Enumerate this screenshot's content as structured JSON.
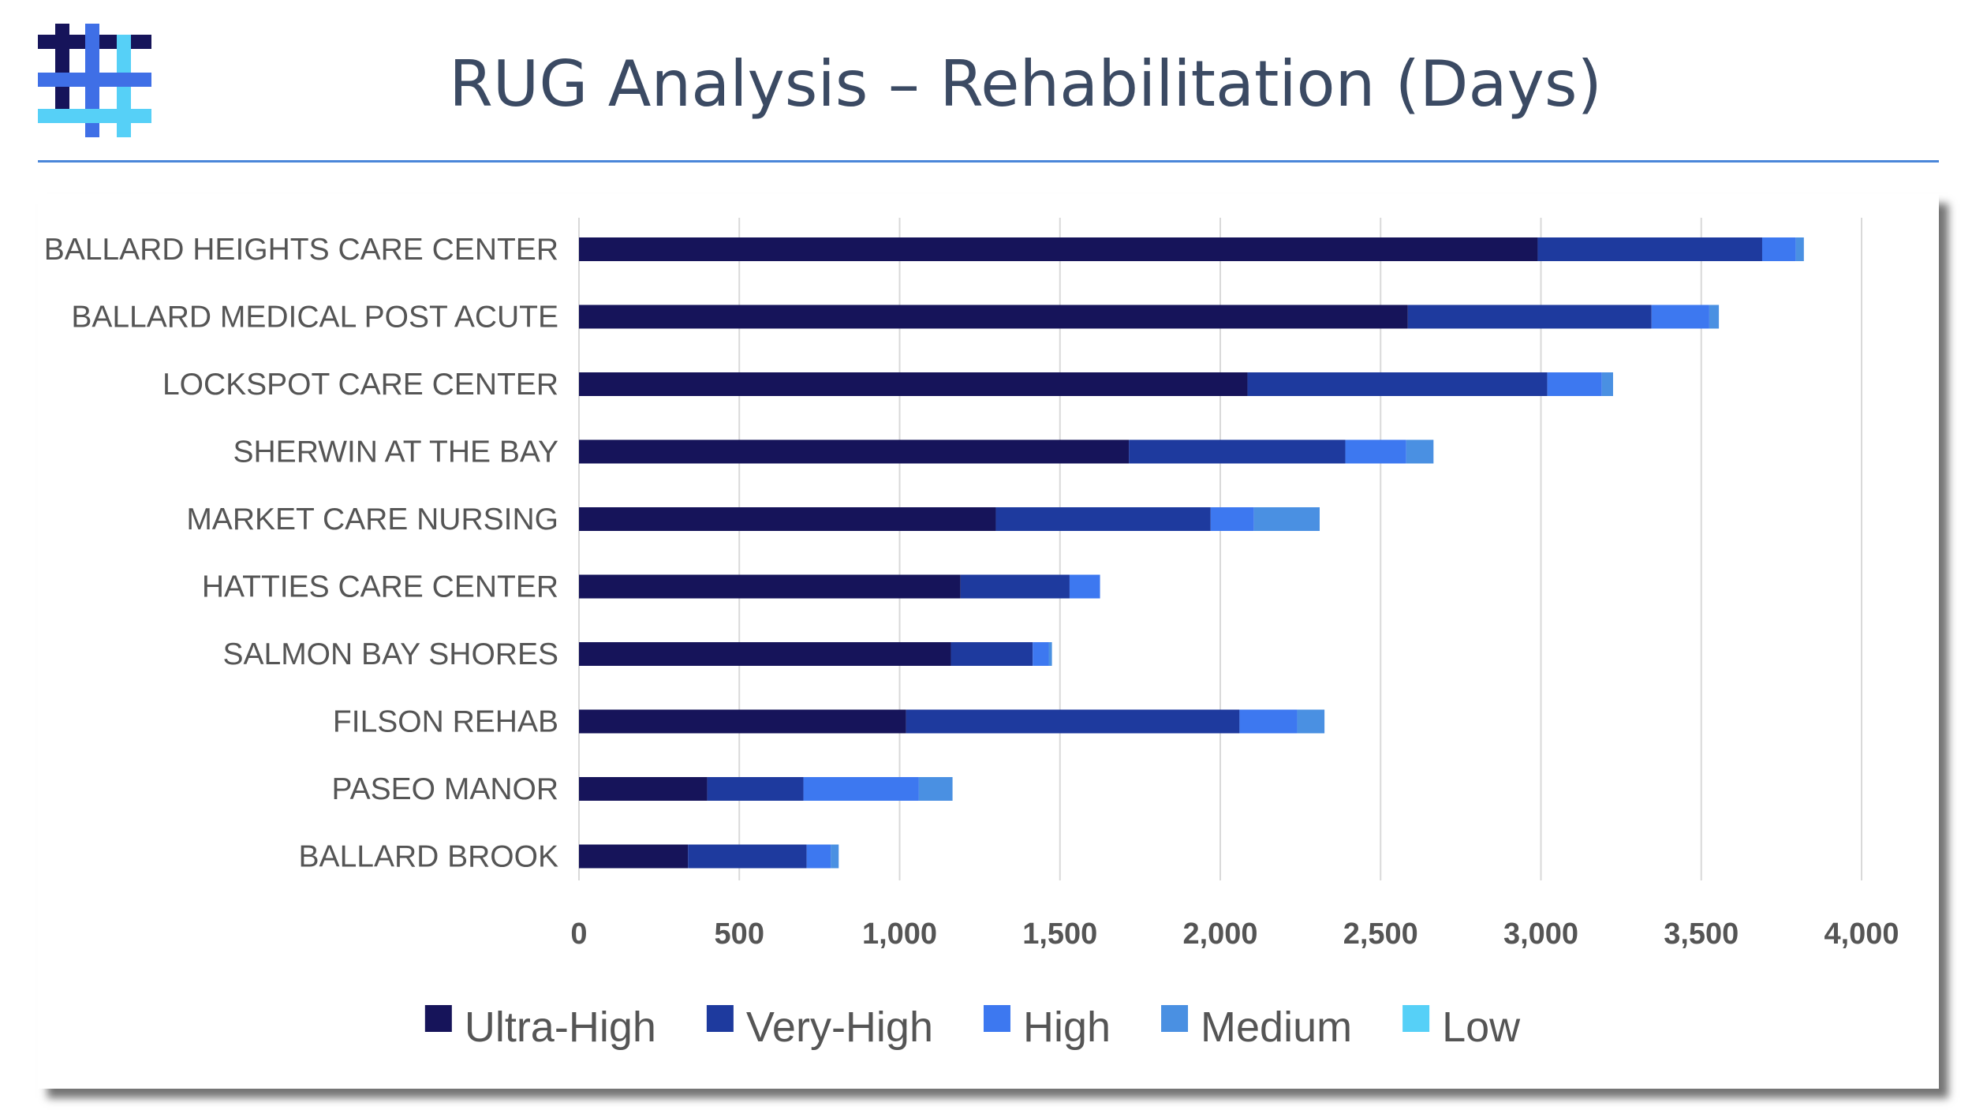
{
  "slide": {
    "title": "RUG Analysis – Rehabilitation (Days)"
  },
  "colors": {
    "title_rule": "#4a86d9",
    "logo_dark": "#16145a",
    "logo_mid": "#3f6fe6",
    "logo_light": "#56d0f7",
    "gridline": "#d9d9d9",
    "axis_text": "#555555"
  },
  "chart_data": {
    "type": "bar",
    "orientation": "horizontal",
    "stacked": true,
    "categories": [
      "BALLARD HEIGHTS CARE CENTER",
      "BALLARD MEDICAL POST ACUTE",
      "LOCKSPOT CARE CENTER",
      "SHERWIN AT THE BAY",
      "MARKET CARE NURSING",
      "HATTIES CARE CENTER",
      "SALMON BAY SHORES",
      "FILSON REHAB",
      "PASEO MANOR",
      "BALLARD BROOK"
    ],
    "series": [
      {
        "name": "Ultra-High",
        "color": "#16145a",
        "values": [
          2990,
          2585,
          2085,
          1715,
          1300,
          1190,
          1160,
          1020,
          400,
          340
        ]
      },
      {
        "name": "Very-High",
        "color": "#1e3a9e",
        "values": [
          700,
          760,
          935,
          675,
          670,
          340,
          255,
          1040,
          300,
          370
        ]
      },
      {
        "name": "High",
        "color": "#3d78f0",
        "values": [
          105,
          180,
          170,
          190,
          135,
          95,
          50,
          180,
          360,
          75
        ]
      },
      {
        "name": "Medium",
        "color": "#4a90e2",
        "values": [
          25,
          30,
          35,
          85,
          205,
          0,
          10,
          85,
          105,
          25
        ]
      },
      {
        "name": "Low",
        "color": "#56d0f7",
        "values": [
          0,
          0,
          0,
          0,
          0,
          0,
          0,
          0,
          0,
          0
        ]
      }
    ],
    "xlim": [
      0,
      4000
    ],
    "x_ticks": [
      0,
      500,
      1000,
      1500,
      2000,
      2500,
      3000,
      3500,
      4000
    ],
    "x_tick_labels": [
      "0",
      "500",
      "1,000",
      "1,500",
      "2,000",
      "2,500",
      "3,000",
      "3,500",
      "4,000"
    ],
    "grid": "vertical",
    "legend_position": "bottom"
  }
}
